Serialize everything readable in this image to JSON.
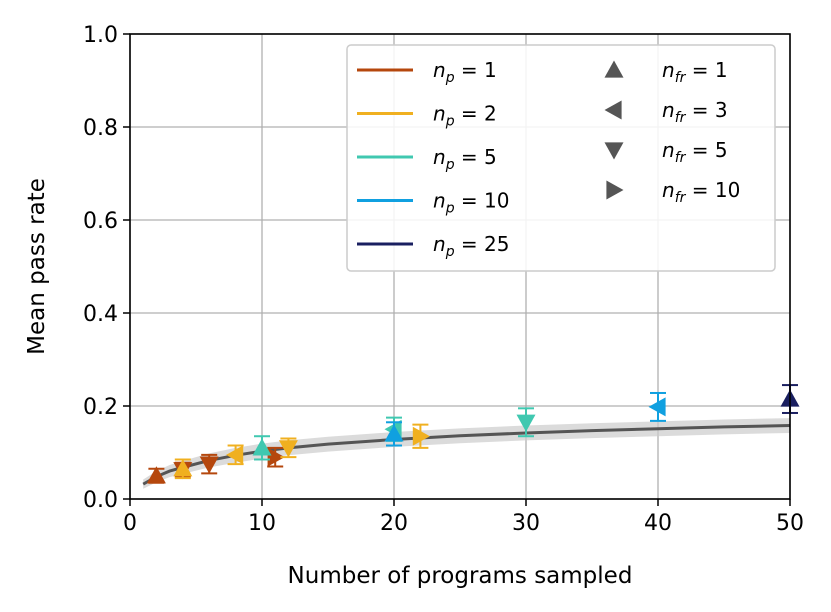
{
  "chart_data": {
    "type": "scatter",
    "title": "",
    "xlabel": "Number of programs sampled",
    "ylabel": "Mean pass rate",
    "xlim": [
      0,
      50
    ],
    "ylim": [
      0.0,
      1.0
    ],
    "grid": true,
    "xticks": [
      0,
      10,
      20,
      30,
      40,
      50
    ],
    "xtick_labels": [
      "0",
      "10",
      "20",
      "30",
      "40",
      "50"
    ],
    "yticks": [
      0.0,
      0.2,
      0.4,
      0.6,
      0.8,
      1.0
    ],
    "ytick_labels": [
      "0.0",
      "0.2",
      "0.4",
      "0.6",
      "0.8",
      "1.0"
    ],
    "baseline_curve": {
      "color": "#555555",
      "band_color": "#cccccc",
      "x": [
        1,
        2,
        3,
        4,
        6,
        8,
        10,
        12,
        15,
        20,
        25,
        30,
        35,
        40,
        45,
        50
      ],
      "y": [
        0.032,
        0.048,
        0.06,
        0.068,
        0.083,
        0.094,
        0.103,
        0.11,
        0.118,
        0.128,
        0.136,
        0.142,
        0.147,
        0.151,
        0.155,
        0.158
      ],
      "band": [
        0.01,
        0.012,
        0.013,
        0.014,
        0.015,
        0.016,
        0.016,
        0.016,
        0.016,
        0.016,
        0.016,
        0.016,
        0.016,
        0.016,
        0.016,
        0.016
      ]
    },
    "series": [
      {
        "name": "n_p = 1",
        "n_p": "1",
        "color": "#b5470d",
        "points": [
          {
            "x": 2,
            "y": 0.05,
            "err": 0.015,
            "marker": "up"
          },
          {
            "x": 4,
            "y": 0.063,
            "err": 0.015,
            "marker": "down"
          },
          {
            "x": 6,
            "y": 0.075,
            "err": 0.02,
            "marker": "down"
          },
          {
            "x": 11,
            "y": 0.09,
            "err": 0.02,
            "marker": "right"
          }
        ]
      },
      {
        "name": "n_p = 2",
        "n_p": "2",
        "color": "#f0b020",
        "points": [
          {
            "x": 4,
            "y": 0.065,
            "err": 0.02,
            "marker": "up"
          },
          {
            "x": 8,
            "y": 0.095,
            "err": 0.02,
            "marker": "left"
          },
          {
            "x": 12,
            "y": 0.11,
            "err": 0.02,
            "marker": "down"
          },
          {
            "x": 22,
            "y": 0.135,
            "err": 0.025,
            "marker": "right"
          }
        ]
      },
      {
        "name": "n_p = 5",
        "n_p": "5",
        "color": "#40c8b0",
        "points": [
          {
            "x": 10,
            "y": 0.11,
            "err": 0.025,
            "marker": "up"
          },
          {
            "x": 20,
            "y": 0.15,
            "err": 0.025,
            "marker": "left"
          },
          {
            "x": 30,
            "y": 0.165,
            "err": 0.03,
            "marker": "down"
          }
        ]
      },
      {
        "name": "n_p = 10",
        "n_p": "10",
        "color": "#10a0e0",
        "points": [
          {
            "x": 20,
            "y": 0.14,
            "err": 0.025,
            "marker": "up"
          },
          {
            "x": 40,
            "y": 0.198,
            "err": 0.03,
            "marker": "left"
          }
        ]
      },
      {
        "name": "n_p = 25",
        "n_p": "25",
        "color": "#1a1f60",
        "points": [
          {
            "x": 50,
            "y": 0.215,
            "err": 0.03,
            "marker": "up"
          }
        ]
      }
    ],
    "marker_legend": [
      {
        "n_fr": "1",
        "marker": "up"
      },
      {
        "n_fr": "3",
        "marker": "left"
      },
      {
        "n_fr": "5",
        "marker": "down"
      },
      {
        "n_fr": "10",
        "marker": "right"
      }
    ],
    "marker_legend_color": "#555555",
    "legend_position": "top-right"
  }
}
